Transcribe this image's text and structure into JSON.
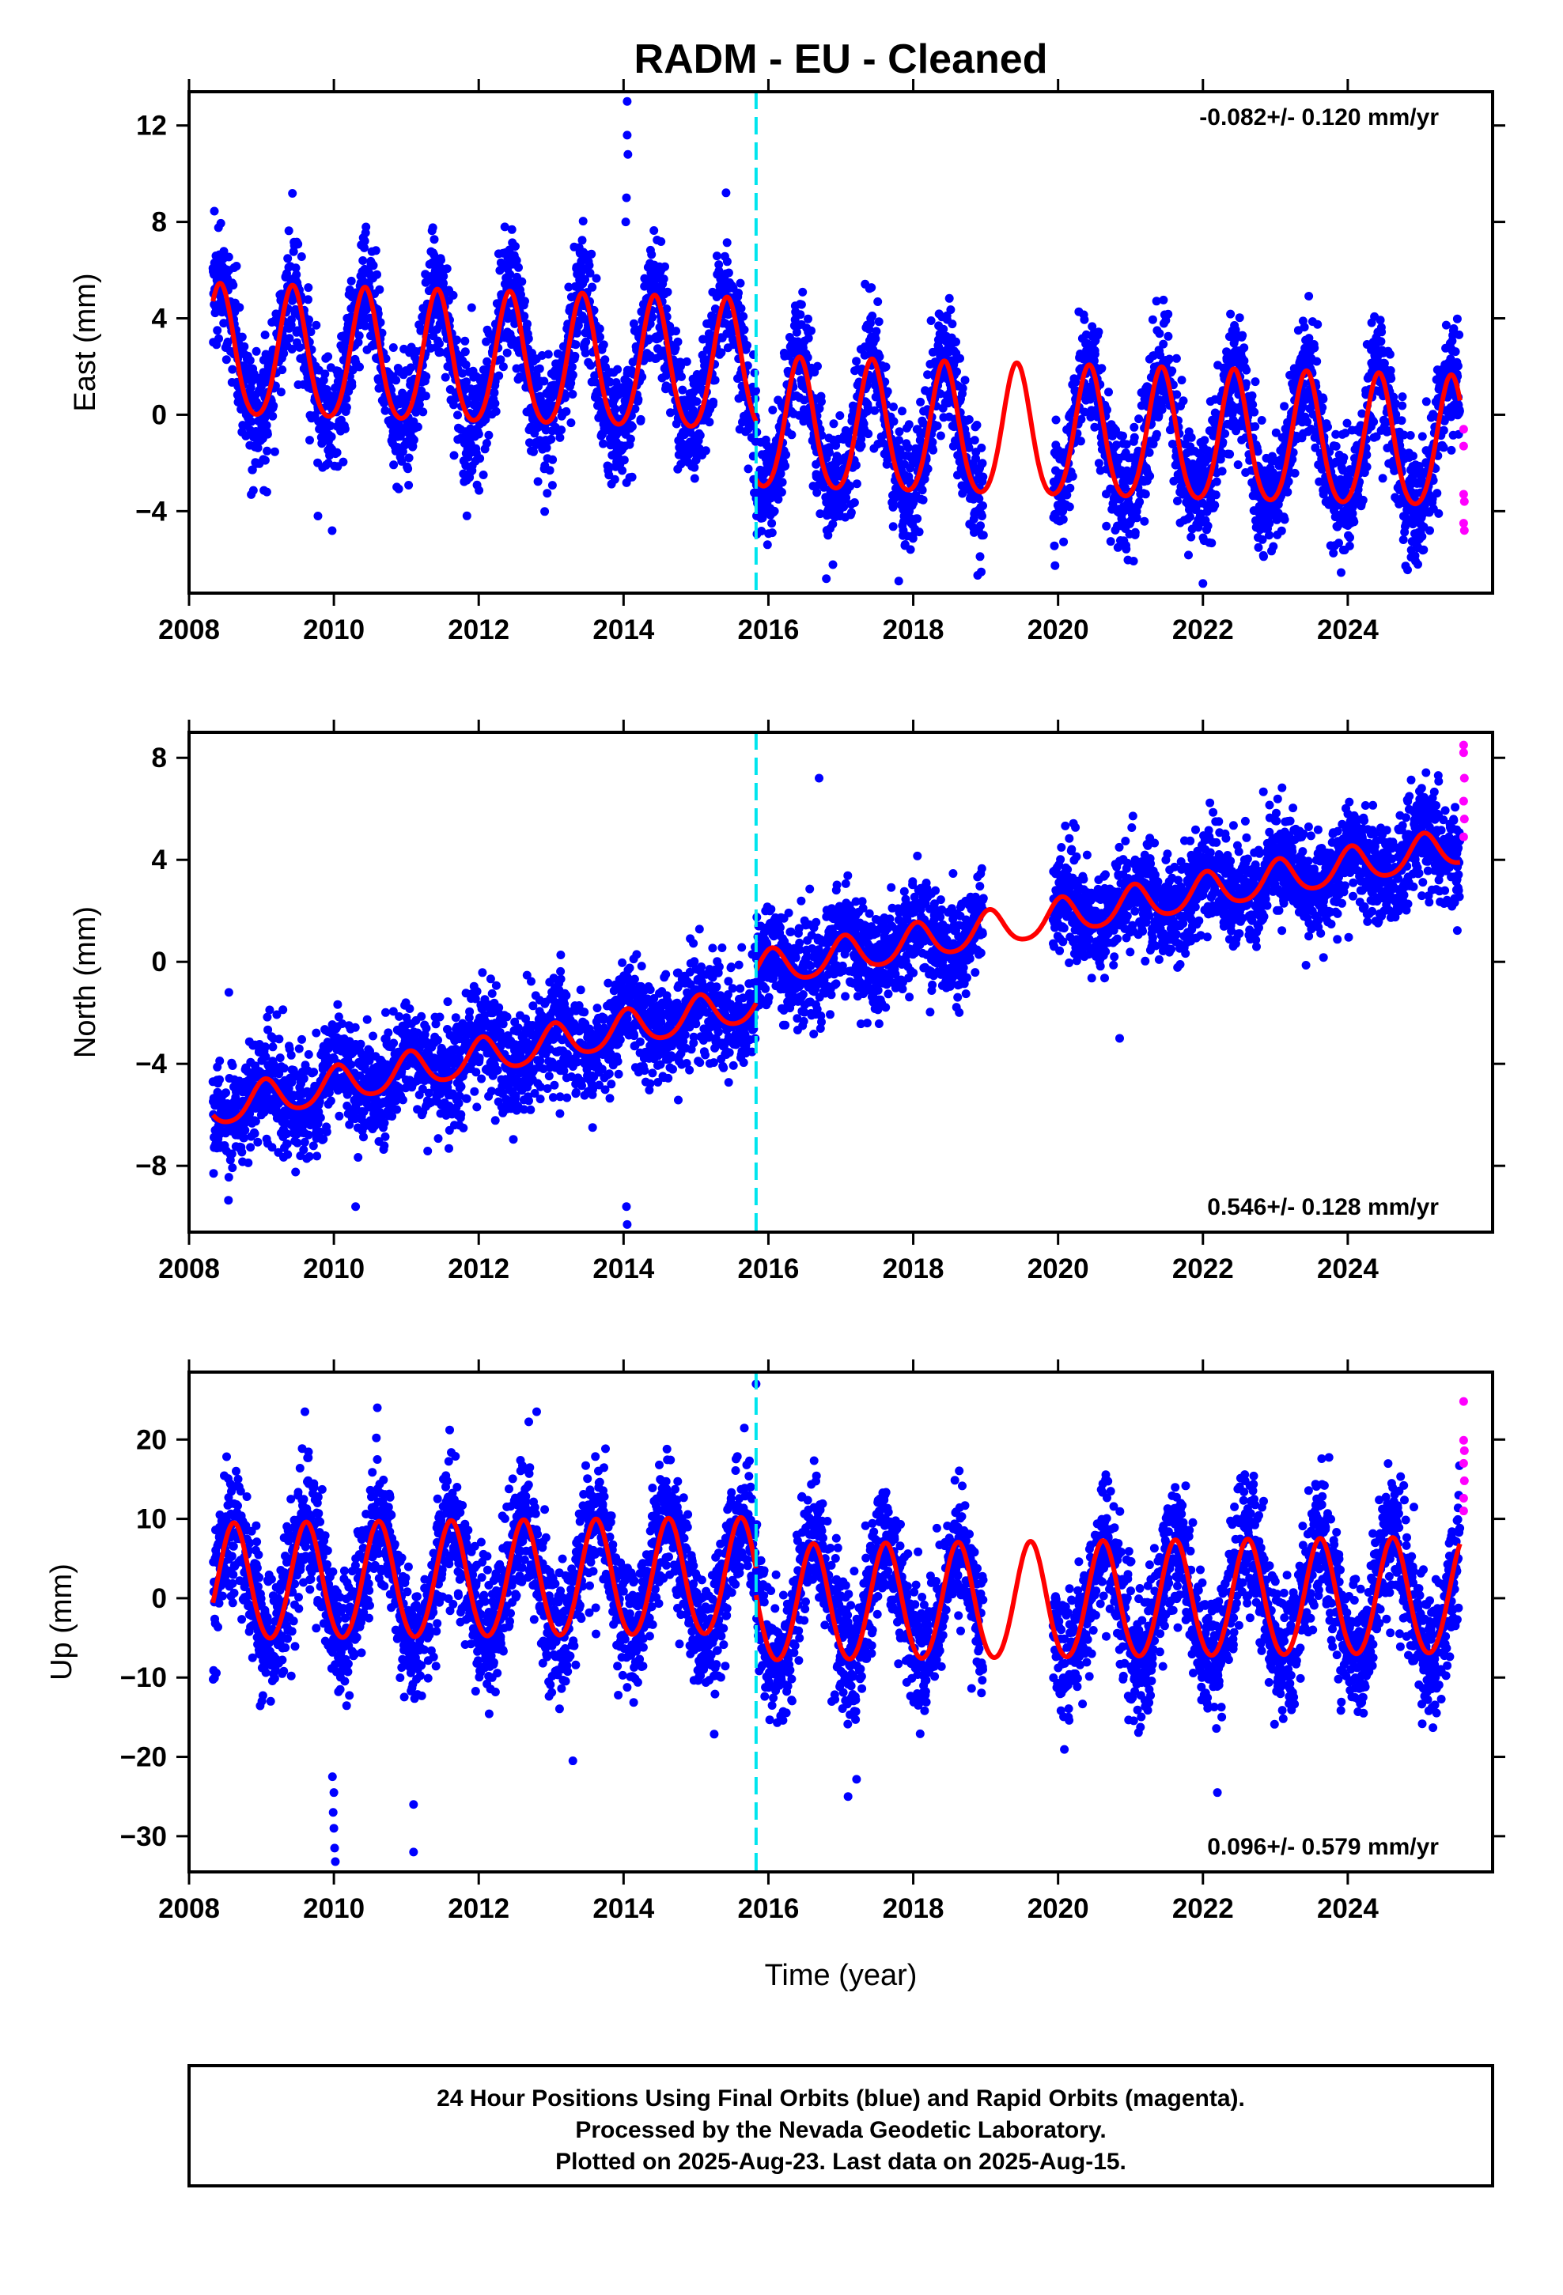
{
  "title": "RADM  - EU - Cleaned",
  "xlabel": "Time (year)",
  "caption": [
    "24 Hour Positions Using Final Orbits (blue) and Rapid Orbits (magenta).",
    "Processed by the Nevada Geodetic Laboratory.",
    "Plotted on 2025-Aug-23. Last data on 2025-Aug-15."
  ],
  "colors": {
    "final_orbits": "#0000ff",
    "rapid_orbits": "#ff00ff",
    "model_fit": "#ff0000",
    "equipment_change": "#00e5ee",
    "frame": "#000000"
  },
  "chart_data": [
    {
      "type": "scatter",
      "ylabel": "East (mm)",
      "rate_text": "-0.082+/- 0.120 mm/yr",
      "rate_position": "top-right",
      "xlim": [
        2008,
        2026.0
      ],
      "ylim": [
        -7.4,
        13.4
      ],
      "xticks": [
        2008,
        2010,
        2012,
        2014,
        2016,
        2018,
        2020,
        2022,
        2024
      ],
      "yticks": [
        -4,
        0,
        4,
        8,
        12
      ],
      "data_start": 2008.33,
      "data_end": 2025.55,
      "gaps": [
        [
          2018.97,
          2019.93
        ]
      ],
      "offset_year": 2015.83,
      "model": {
        "amplitude": 2.7,
        "peak_phase": 0.43,
        "semiannual_amp": 0.35,
        "segments": [
          {
            "end": 2015.83,
            "mean": 1.8
          },
          {
            "end": 2026.0,
            "mean": -0.6
          }
        ],
        "trend": -0.082
      },
      "scatter_sd": 1.25,
      "outliers": [
        {
          "x": 2014.05,
          "y": 13.0
        },
        {
          "x": 2014.05,
          "y": 11.6
        },
        {
          "x": 2014.06,
          "y": 10.8
        },
        {
          "x": 2014.04,
          "y": 9.0
        },
        {
          "x": 2014.03,
          "y": 8.0
        },
        {
          "x": 2009.78,
          "y": -4.2
        },
        {
          "x": 2022.0,
          "y": -7.0
        },
        {
          "x": 2017.8,
          "y": -6.9
        },
        {
          "x": 2016.8,
          "y": -6.8
        }
      ],
      "rapid_points": [
        {
          "x": 2025.6,
          "y": -1.3
        },
        {
          "x": 2025.6,
          "y": -3.3
        },
        {
          "x": 2025.61,
          "y": -3.6
        },
        {
          "x": 2025.6,
          "y": -4.5
        },
        {
          "x": 2025.61,
          "y": -4.8
        },
        {
          "x": 2025.6,
          "y": -0.6
        }
      ]
    },
    {
      "type": "scatter",
      "ylabel": "North (mm)",
      "rate_text": "0.546+/- 0.128 mm/yr",
      "rate_position": "bottom-right",
      "xlim": [
        2008,
        2026.0
      ],
      "ylim": [
        -10.6,
        9.0
      ],
      "xticks": [
        2008,
        2010,
        2012,
        2014,
        2016,
        2018,
        2020,
        2022,
        2024
      ],
      "yticks": [
        -8,
        -4,
        0,
        4,
        8
      ],
      "data_start": 2008.33,
      "data_end": 2025.55,
      "gaps": [
        [
          2018.97,
          2019.93
        ]
      ],
      "offset_year": 2015.83,
      "model": {
        "amplitude": 0.7,
        "peak_phase": 0.05,
        "semiannual_amp": 0.1,
        "segments": [
          {
            "end": 2015.83,
            "mean": -5.6,
            "start_val": -5.6
          },
          {
            "end": 2026.0,
            "mean": 0.0
          }
        ],
        "trend": 0.546
      },
      "model_anchor": {
        "x0": 2008.3,
        "y0": -5.8,
        "slope_a": 0.55,
        "jump": 1.3,
        "slope_b": 0.5
      },
      "scatter_sd": 1.0,
      "outliers": [
        {
          "x": 2014.05,
          "y": -10.3
        },
        {
          "x": 2014.04,
          "y": -9.6
        },
        {
          "x": 2010.3,
          "y": -9.6
        },
        {
          "x": 2016.7,
          "y": 7.2
        },
        {
          "x": 2020.85,
          "y": -3.0
        },
        {
          "x": 2008.55,
          "y": -1.2
        }
      ],
      "rapid_points": [
        {
          "x": 2025.6,
          "y": 8.5
        },
        {
          "x": 2025.6,
          "y": 8.2
        },
        {
          "x": 2025.61,
          "y": 7.2
        },
        {
          "x": 2025.6,
          "y": 6.3
        },
        {
          "x": 2025.61,
          "y": 5.6
        },
        {
          "x": 2025.6,
          "y": 4.9
        }
      ]
    },
    {
      "type": "scatter",
      "ylabel": "Up (mm)",
      "rate_text": "0.096+/- 0.579 mm/yr",
      "rate_position": "bottom-right",
      "xlim": [
        2008,
        2026.0
      ],
      "ylim": [
        -34.5,
        28.5
      ],
      "xticks": [
        2008,
        2010,
        2012,
        2014,
        2016,
        2018,
        2020,
        2022,
        2024
      ],
      "yticks": [
        -30,
        -20,
        -10,
        0,
        10,
        20
      ],
      "data_start": 2008.33,
      "data_end": 2025.55,
      "gaps": [
        [
          2018.97,
          2019.93
        ]
      ],
      "offset_year": 2015.83,
      "model": {
        "amplitude": 7.3,
        "peak_phase": 0.62,
        "semiannual_amp": 0.5,
        "segments": [
          {
            "end": 2015.83,
            "mean": 2.4
          },
          {
            "end": 2026.0,
            "mean": -1.0
          }
        ],
        "trend": 0.096
      },
      "scatter_sd": 4.2,
      "outliers": [
        {
          "x": 2010.02,
          "y": -33.2
        },
        {
          "x": 2010.01,
          "y": -31.5
        },
        {
          "x": 2010.0,
          "y": -29.0
        },
        {
          "x": 2009.99,
          "y": -27.0
        },
        {
          "x": 2010.0,
          "y": -24.5
        },
        {
          "x": 2009.98,
          "y": -22.5
        },
        {
          "x": 2011.1,
          "y": -32.0
        },
        {
          "x": 2011.1,
          "y": -26.0
        },
        {
          "x": 2015.83,
          "y": 27.0
        },
        {
          "x": 2009.6,
          "y": 23.5
        },
        {
          "x": 2010.6,
          "y": 24.0
        },
        {
          "x": 2012.8,
          "y": 23.5
        },
        {
          "x": 2017.1,
          "y": -25.0
        },
        {
          "x": 2022.2,
          "y": -24.5
        },
        {
          "x": 2013.3,
          "y": -20.5
        }
      ],
      "rapid_points": [
        {
          "x": 2025.6,
          "y": 24.8
        },
        {
          "x": 2025.6,
          "y": 19.9
        },
        {
          "x": 2025.61,
          "y": 18.6
        },
        {
          "x": 2025.6,
          "y": 17.0
        },
        {
          "x": 2025.61,
          "y": 14.8
        },
        {
          "x": 2025.6,
          "y": 12.6
        },
        {
          "x": 2025.6,
          "y": 11.0
        }
      ]
    }
  ]
}
